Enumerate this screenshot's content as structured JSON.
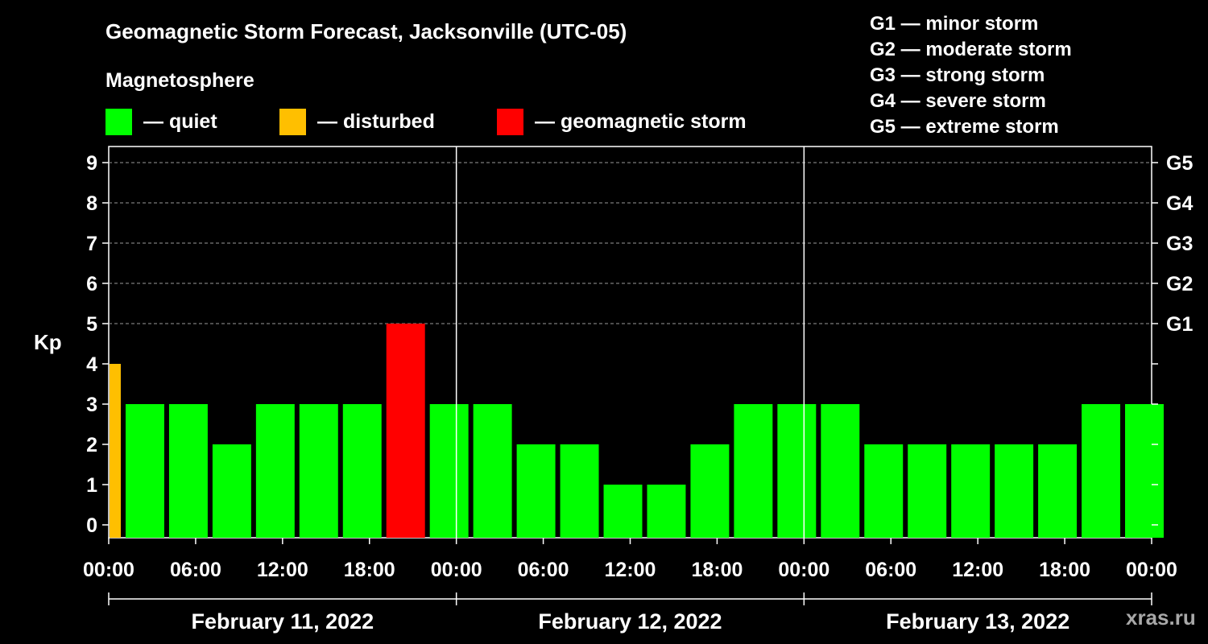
{
  "title": "Geomagnetic Storm Forecast, Jacksonville (UTC-05)",
  "magnetosphere_label": "Magnetosphere",
  "legend": [
    {
      "label": "— quiet",
      "color": "#00ff00"
    },
    {
      "label": "— disturbed",
      "color": "#ffbf00"
    },
    {
      "label": "— geomagnetic storm",
      "color": "#ff0000"
    }
  ],
  "storm_scale": [
    "G1 — minor storm",
    "G2 — moderate storm",
    "G3 — strong storm",
    "G4 — severe storm",
    "G5 — extreme storm"
  ],
  "watermark": "xras.ru",
  "chart_data": {
    "type": "bar",
    "title": "Geomagnetic Storm Forecast, Jacksonville (UTC-05)",
    "ylabel": "Kp",
    "ylim": [
      0,
      9
    ],
    "yticks": [
      "0",
      "1",
      "2",
      "3",
      "4",
      "5",
      "6",
      "7",
      "8",
      "9"
    ],
    "right_ticks": [
      {
        "level": 5,
        "label": "G1"
      },
      {
        "level": 6,
        "label": "G2"
      },
      {
        "level": 7,
        "label": "G3"
      },
      {
        "level": 8,
        "label": "G4"
      },
      {
        "level": 9,
        "label": "G5"
      }
    ],
    "xticks": [
      "00:00",
      "06:00",
      "12:00",
      "18:00",
      "00:00",
      "06:00",
      "12:00",
      "18:00",
      "00:00",
      "06:00",
      "12:00",
      "18:00",
      "00:00"
    ],
    "days": [
      "February 11, 2022",
      "February 12, 2022",
      "February 13, 2022"
    ],
    "grid": "dashed horizontal at Kp 5-9",
    "first_bar_hours": 1,
    "interval_hours": 3,
    "total_hours": 72,
    "values": [
      4,
      3,
      3,
      2,
      3,
      3,
      3,
      5,
      3,
      3,
      2,
      2,
      1,
      1,
      2,
      3,
      3,
      3,
      2,
      2,
      2,
      2,
      2,
      3,
      3
    ],
    "colors": {
      "quiet": "#00ff00",
      "disturbed": "#ffbf00",
      "storm": "#ff0000"
    }
  }
}
